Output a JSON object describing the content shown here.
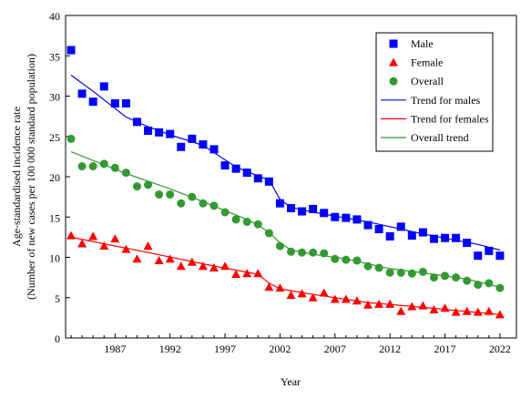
{
  "chart_data": {
    "type": "scatter",
    "xlabel": "Year",
    "ylabel_line1": "Age-standardised incidence rate",
    "ylabel_line2": "(Number of new cases per 100 000 standard population)",
    "xlim": [
      1982.5,
      2023.5
    ],
    "ylim": [
      0,
      40
    ],
    "y_ticks": [
      0,
      5,
      10,
      15,
      20,
      25,
      30,
      35,
      40
    ],
    "x_ticks": [
      1987,
      1992,
      1997,
      2002,
      2007,
      2012,
      2017,
      2022
    ],
    "x_tick_labels": [
      "1987",
      "1992",
      "1997",
      "2002",
      "2007",
      "2012",
      "2017",
      "2022"
    ],
    "grid": false,
    "legend_position": "top-right",
    "x": [
      1983,
      1984,
      1985,
      1986,
      1987,
      1988,
      1989,
      1990,
      1991,
      1992,
      1993,
      1994,
      1995,
      1996,
      1997,
      1998,
      1999,
      2000,
      2001,
      2002,
      2003,
      2004,
      2005,
      2006,
      2007,
      2008,
      2009,
      2010,
      2011,
      2012,
      2013,
      2014,
      2015,
      2016,
      2017,
      2018,
      2019,
      2020,
      2021,
      2022
    ],
    "series": [
      {
        "name": "Male",
        "marker": "square",
        "color": "#0000ff",
        "values": [
          35.7,
          30.3,
          29.3,
          31.2,
          29.1,
          29.1,
          26.8,
          25.7,
          25.5,
          25.3,
          23.7,
          24.7,
          24.0,
          23.4,
          21.4,
          21.0,
          20.5,
          19.8,
          19.4,
          16.7,
          16.1,
          15.7,
          16.0,
          15.5,
          15.0,
          14.9,
          14.7,
          14.0,
          13.5,
          12.6,
          13.8,
          12.7,
          13.1,
          12.3,
          12.4,
          12.4,
          11.8,
          10.2,
          10.8,
          10.2
        ]
      },
      {
        "name": "Female",
        "marker": "triangle",
        "color": "#ff0000",
        "values": [
          12.7,
          11.7,
          12.6,
          11.4,
          12.3,
          11.0,
          9.8,
          11.4,
          9.6,
          9.8,
          8.9,
          9.4,
          8.9,
          8.7,
          8.9,
          7.9,
          8.0,
          8.0,
          6.3,
          6.2,
          5.3,
          5.5,
          5.0,
          5.6,
          4.8,
          4.8,
          4.6,
          4.1,
          4.2,
          4.2,
          3.3,
          3.9,
          4.0,
          3.5,
          3.7,
          3.2,
          3.3,
          3.2,
          3.3,
          2.9
        ]
      },
      {
        "name": "Overall",
        "marker": "circle",
        "color": "#339933",
        "values": [
          24.7,
          21.3,
          21.3,
          21.6,
          21.1,
          20.5,
          18.8,
          19.0,
          17.8,
          17.8,
          16.7,
          17.5,
          16.7,
          16.4,
          15.6,
          14.7,
          14.4,
          14.1,
          13.0,
          11.4,
          10.7,
          10.6,
          10.6,
          10.5,
          9.8,
          9.7,
          9.6,
          8.9,
          8.7,
          8.1,
          8.1,
          8.0,
          8.2,
          7.5,
          7.7,
          7.5,
          7.1,
          6.6,
          6.8,
          6.2
        ]
      }
    ],
    "trends": [
      {
        "name": "Trend for males",
        "color": "#0000ff",
        "points": [
          [
            1983,
            32.6
          ],
          [
            1985,
            30.6
          ],
          [
            1988,
            27.4
          ],
          [
            1990,
            26.2
          ],
          [
            1992,
            25.2
          ],
          [
            1995,
            23.9
          ],
          [
            1998,
            21.2
          ],
          [
            2000,
            20.1
          ],
          [
            2001,
            19.6
          ],
          [
            2002,
            17.2
          ],
          [
            2003,
            16.2
          ],
          [
            2005,
            15.6
          ],
          [
            2010,
            14.4
          ],
          [
            2015,
            12.9
          ],
          [
            2020,
            11.6
          ],
          [
            2022,
            10.9
          ]
        ]
      },
      {
        "name": "Trend for females",
        "color": "#ff0000",
        "points": [
          [
            1983,
            12.5
          ],
          [
            1990,
            10.6
          ],
          [
            1995,
            9.2
          ],
          [
            2000,
            7.9
          ],
          [
            2001,
            6.8
          ],
          [
            2002,
            6.1
          ],
          [
            2005,
            5.4
          ],
          [
            2010,
            4.4
          ],
          [
            2015,
            3.8
          ],
          [
            2022,
            2.9
          ]
        ]
      },
      {
        "name": "Overall trend",
        "color": "#339933",
        "points": [
          [
            1983,
            23.1
          ],
          [
            1988,
            20.4
          ],
          [
            1992,
            18.5
          ],
          [
            1995,
            16.9
          ],
          [
            1999,
            14.7
          ],
          [
            2000,
            14.0
          ],
          [
            2001,
            13.1
          ],
          [
            2002,
            11.8
          ],
          [
            2003,
            10.9
          ],
          [
            2005,
            10.4
          ],
          [
            2008,
            9.8
          ],
          [
            2012,
            8.6
          ],
          [
            2016,
            7.9
          ],
          [
            2019,
            7.3
          ],
          [
            2022,
            6.3
          ]
        ]
      }
    ]
  }
}
